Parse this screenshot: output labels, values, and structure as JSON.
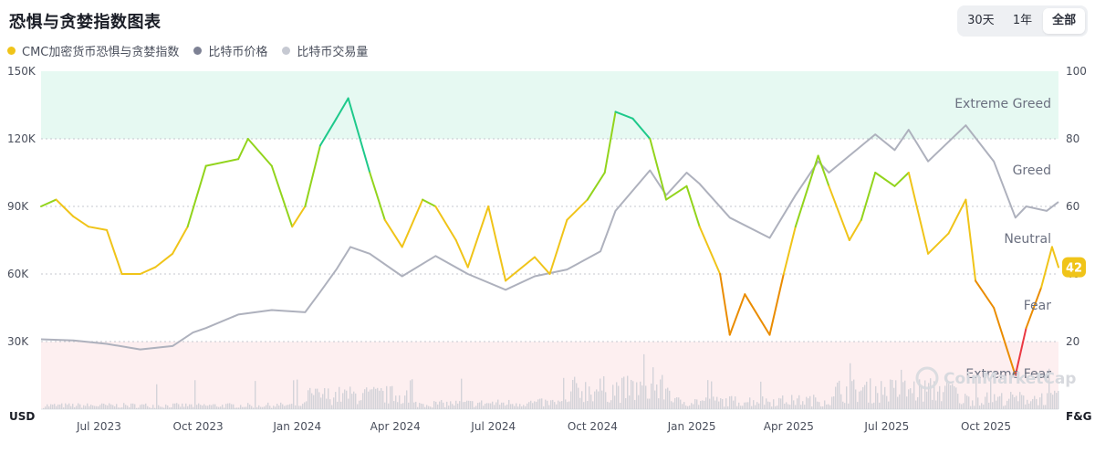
{
  "title": "恐惧与贪婪指数图表",
  "range_tabs": [
    {
      "label": "30天",
      "active": false
    },
    {
      "label": "1年",
      "active": false
    },
    {
      "label": "全部",
      "active": true
    }
  ],
  "legend": [
    {
      "label": "CMC加密货币恐惧与贪婪指数",
      "color": "#f0c419"
    },
    {
      "label": "比特币价格",
      "color": "#7d8194"
    },
    {
      "label": "比特币交易量",
      "color": "#c6c9d2"
    }
  ],
  "watermark": "CoinMarketCap",
  "chart_data": {
    "type": "line",
    "x_ticks": [
      "Jul 2023",
      "Oct 2023",
      "Jan 2024",
      "Apr 2024",
      "Jul 2024",
      "Oct 2024",
      "Jan 2025",
      "Apr 2025",
      "Jul 2025",
      "Oct 2025"
    ],
    "x_start": "2023-06-01",
    "x_end": "2025-12-31",
    "left_axis": {
      "unit": "USD",
      "ticks": [
        "30K",
        "60K",
        "90K",
        "120K",
        "150K"
      ],
      "range": [
        0,
        150000
      ]
    },
    "right_axis": {
      "unit": "F&G",
      "ticks": [
        "20",
        "40",
        "60",
        "80",
        "100"
      ],
      "range": [
        0,
        100
      ]
    },
    "zones": [
      {
        "label": "Extreme Greed",
        "from": 80,
        "to": 100,
        "color": "#e6f9f2"
      },
      {
        "label": "Greed",
        "from": 60,
        "to": 80,
        "color": ""
      },
      {
        "label": "Neutral",
        "from": 40,
        "to": 60,
        "color": ""
      },
      {
        "label": "Fear",
        "from": 20,
        "to": 40,
        "color": ""
      },
      {
        "label": "Extreme Fear",
        "from": 0,
        "to": 20,
        "color": "#fdeff0"
      }
    ],
    "current_value": "42",
    "series": [
      {
        "name": "比特币价格",
        "color": "#aeb1bd",
        "axis": "left",
        "points": [
          [
            "2023-06-01",
            31000
          ],
          [
            "2023-07-01",
            30500
          ],
          [
            "2023-08-01",
            29000
          ],
          [
            "2023-09-01",
            26500
          ],
          [
            "2023-10-01",
            28000
          ],
          [
            "2023-10-20",
            34000
          ],
          [
            "2023-11-01",
            36000
          ],
          [
            "2023-12-01",
            42000
          ],
          [
            "2024-01-01",
            44000
          ],
          [
            "2024-02-01",
            43000
          ],
          [
            "2024-02-15",
            52000
          ],
          [
            "2024-03-01",
            62000
          ],
          [
            "2024-03-14",
            72000
          ],
          [
            "2024-04-01",
            69000
          ],
          [
            "2024-05-01",
            59000
          ],
          [
            "2024-06-01",
            68000
          ],
          [
            "2024-07-01",
            60000
          ],
          [
            "2024-08-05",
            53000
          ],
          [
            "2024-09-01",
            59000
          ],
          [
            "2024-10-01",
            62000
          ],
          [
            "2024-11-01",
            70000
          ],
          [
            "2024-11-15",
            88000
          ],
          [
            "2024-12-17",
            106000
          ],
          [
            "2025-01-01",
            95000
          ],
          [
            "2025-01-20",
            105000
          ],
          [
            "2025-02-01",
            100000
          ],
          [
            "2025-03-01",
            85000
          ],
          [
            "2025-04-07",
            76000
          ],
          [
            "2025-05-01",
            95000
          ],
          [
            "2025-05-22",
            110000
          ],
          [
            "2025-06-01",
            105000
          ],
          [
            "2025-07-14",
            122000
          ],
          [
            "2025-08-01",
            115000
          ],
          [
            "2025-08-14",
            124000
          ],
          [
            "2025-09-01",
            110000
          ],
          [
            "2025-10-06",
            126000
          ],
          [
            "2025-11-01",
            110000
          ],
          [
            "2025-11-21",
            85000
          ],
          [
            "2025-12-01",
            90000
          ],
          [
            "2025-12-20",
            88000
          ],
          [
            "2025-12-31",
            92000
          ]
        ]
      },
      {
        "name": "CMC加密货币恐惧与贪婪指数",
        "color": "#f0c419",
        "axis": "right",
        "points": [
          [
            "2023-06-01",
            60
          ],
          [
            "2023-06-15",
            62
          ],
          [
            "2023-07-01",
            57
          ],
          [
            "2023-07-15",
            54
          ],
          [
            "2023-08-01",
            53
          ],
          [
            "2023-08-15",
            40
          ],
          [
            "2023-09-01",
            40
          ],
          [
            "2023-09-15",
            42
          ],
          [
            "2023-10-01",
            46
          ],
          [
            "2023-10-15",
            54
          ],
          [
            "2023-11-01",
            72
          ],
          [
            "2023-12-01",
            74
          ],
          [
            "2023-12-10",
            80
          ],
          [
            "2024-01-01",
            72
          ],
          [
            "2024-01-20",
            54
          ],
          [
            "2024-02-01",
            60
          ],
          [
            "2024-02-15",
            78
          ],
          [
            "2024-03-01",
            86
          ],
          [
            "2024-03-12",
            92
          ],
          [
            "2024-04-01",
            70
          ],
          [
            "2024-04-15",
            56
          ],
          [
            "2024-05-01",
            48
          ],
          [
            "2024-05-20",
            62
          ],
          [
            "2024-06-01",
            60
          ],
          [
            "2024-06-20",
            50
          ],
          [
            "2024-07-01",
            42
          ],
          [
            "2024-07-20",
            60
          ],
          [
            "2024-08-05",
            38
          ],
          [
            "2024-09-01",
            45
          ],
          [
            "2024-09-15",
            40
          ],
          [
            "2024-10-01",
            56
          ],
          [
            "2024-10-20",
            62
          ],
          [
            "2024-11-05",
            70
          ],
          [
            "2024-11-15",
            88
          ],
          [
            "2024-12-01",
            86
          ],
          [
            "2024-12-17",
            80
          ],
          [
            "2025-01-01",
            62
          ],
          [
            "2025-01-20",
            66
          ],
          [
            "2025-02-01",
            54
          ],
          [
            "2025-02-20",
            40
          ],
          [
            "2025-03-01",
            22
          ],
          [
            "2025-03-15",
            34
          ],
          [
            "2025-04-07",
            22
          ],
          [
            "2025-04-20",
            40
          ],
          [
            "2025-05-01",
            54
          ],
          [
            "2025-05-22",
            75
          ],
          [
            "2025-06-01",
            66
          ],
          [
            "2025-06-20",
            50
          ],
          [
            "2025-07-01",
            56
          ],
          [
            "2025-07-14",
            70
          ],
          [
            "2025-08-01",
            66
          ],
          [
            "2025-08-14",
            70
          ],
          [
            "2025-09-01",
            46
          ],
          [
            "2025-09-20",
            52
          ],
          [
            "2025-10-06",
            62
          ],
          [
            "2025-10-15",
            38
          ],
          [
            "2025-11-01",
            30
          ],
          [
            "2025-11-21",
            10
          ],
          [
            "2025-12-01",
            24
          ],
          [
            "2025-12-15",
            36
          ],
          [
            "2025-12-25",
            48
          ],
          [
            "2025-12-31",
            42
          ]
        ]
      },
      {
        "name": "比特币交易量",
        "color": "#c6c9d2",
        "axis": "volume",
        "note_only": true
      }
    ]
  }
}
